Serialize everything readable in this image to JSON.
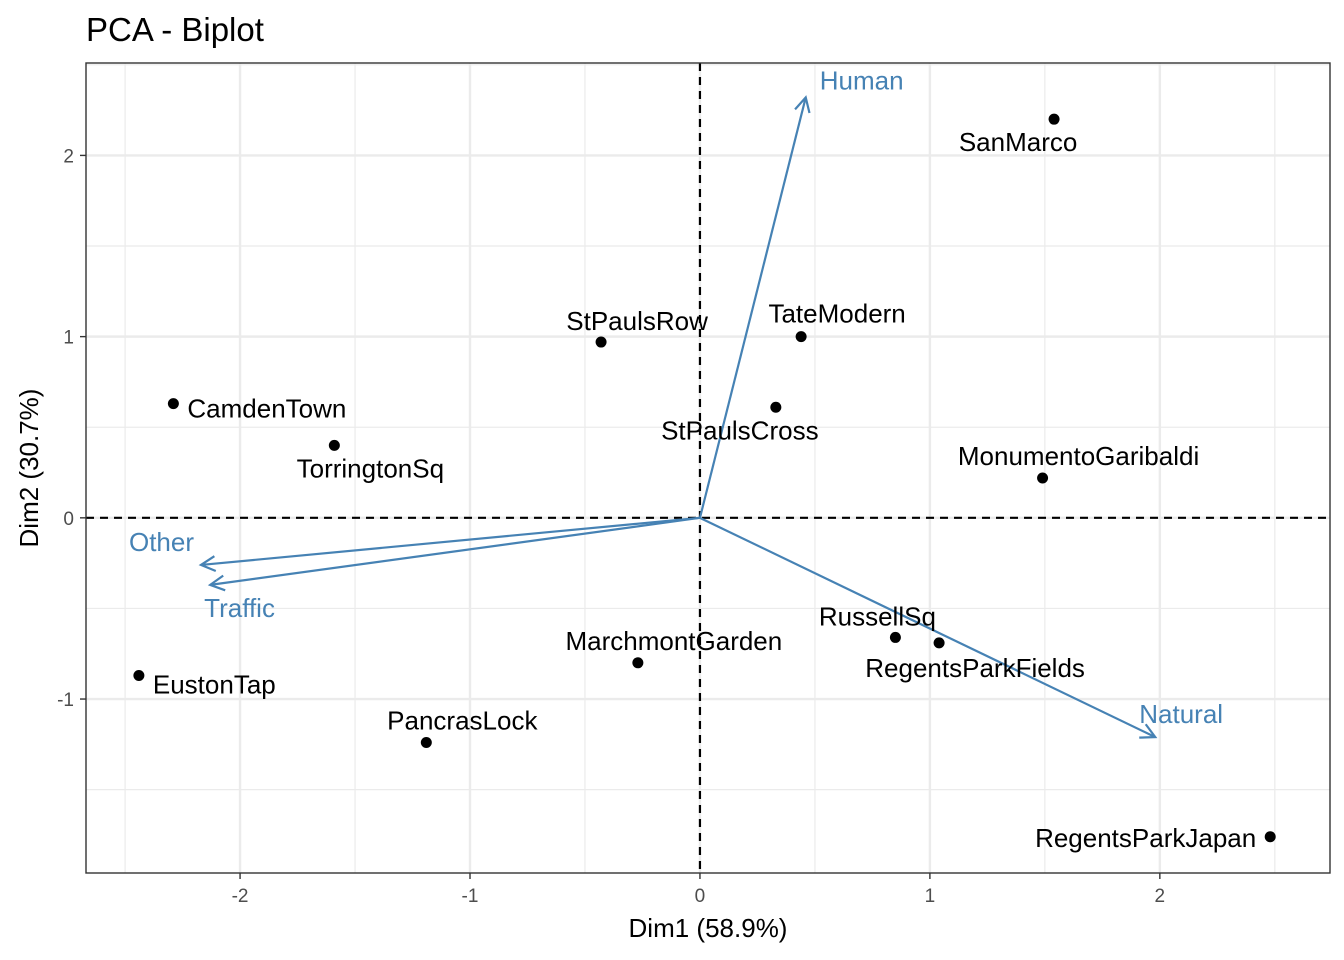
{
  "chart_data": {
    "type": "scatter",
    "title": "PCA - Biplot",
    "xlabel": "Dim1 (58.9%)",
    "ylabel": "Dim2 (30.7%)",
    "xlim": [
      -2.67,
      2.74
    ],
    "ylim": [
      -1.96,
      2.51
    ],
    "xticks": [
      -2,
      -1,
      0,
      1,
      2
    ],
    "yticks": [
      -1,
      0,
      1,
      2
    ],
    "x_tick_labels": [
      "-2",
      "-1",
      "0",
      "1",
      "2"
    ],
    "y_tick_labels": [
      "-1",
      "0",
      "1",
      "2"
    ],
    "grid": true,
    "colors": {
      "points": "#000000",
      "variables": "#4682b4",
      "grid": "#ebebeb",
      "panel_border": "#333333"
    },
    "points": [
      {
        "name": "SanMarco",
        "x": 1.54,
        "y": 2.2
      },
      {
        "name": "TateModern",
        "x": 0.44,
        "y": 1.0
      },
      {
        "name": "StPaulsRow",
        "x": -0.43,
        "y": 0.97
      },
      {
        "name": "StPaulsCross",
        "x": 0.33,
        "y": 0.61
      },
      {
        "name": "CamdenTown",
        "x": -2.29,
        "y": 0.63
      },
      {
        "name": "TorringtonSq",
        "x": -1.59,
        "y": 0.4
      },
      {
        "name": "MonumentoGaribaldi",
        "x": 1.49,
        "y": 0.22
      },
      {
        "name": "RussellSq",
        "x": 0.85,
        "y": -0.66
      },
      {
        "name": "RegentsParkFields",
        "x": 1.04,
        "y": -0.69
      },
      {
        "name": "MarchmontGarden",
        "x": -0.27,
        "y": -0.8
      },
      {
        "name": "EustonTap",
        "x": -2.44,
        "y": -0.87
      },
      {
        "name": "PancrasLock",
        "x": -1.19,
        "y": -1.24
      },
      {
        "name": "RegentsParkJapan",
        "x": 2.48,
        "y": -1.76
      }
    ],
    "variables": [
      {
        "name": "Human",
        "x": 0.46,
        "y": 2.32
      },
      {
        "name": "Other",
        "x": -2.17,
        "y": -0.26
      },
      {
        "name": "Traffic",
        "x": -2.13,
        "y": -0.37
      },
      {
        "name": "Natural",
        "x": 1.98,
        "y": -1.21
      }
    ]
  }
}
